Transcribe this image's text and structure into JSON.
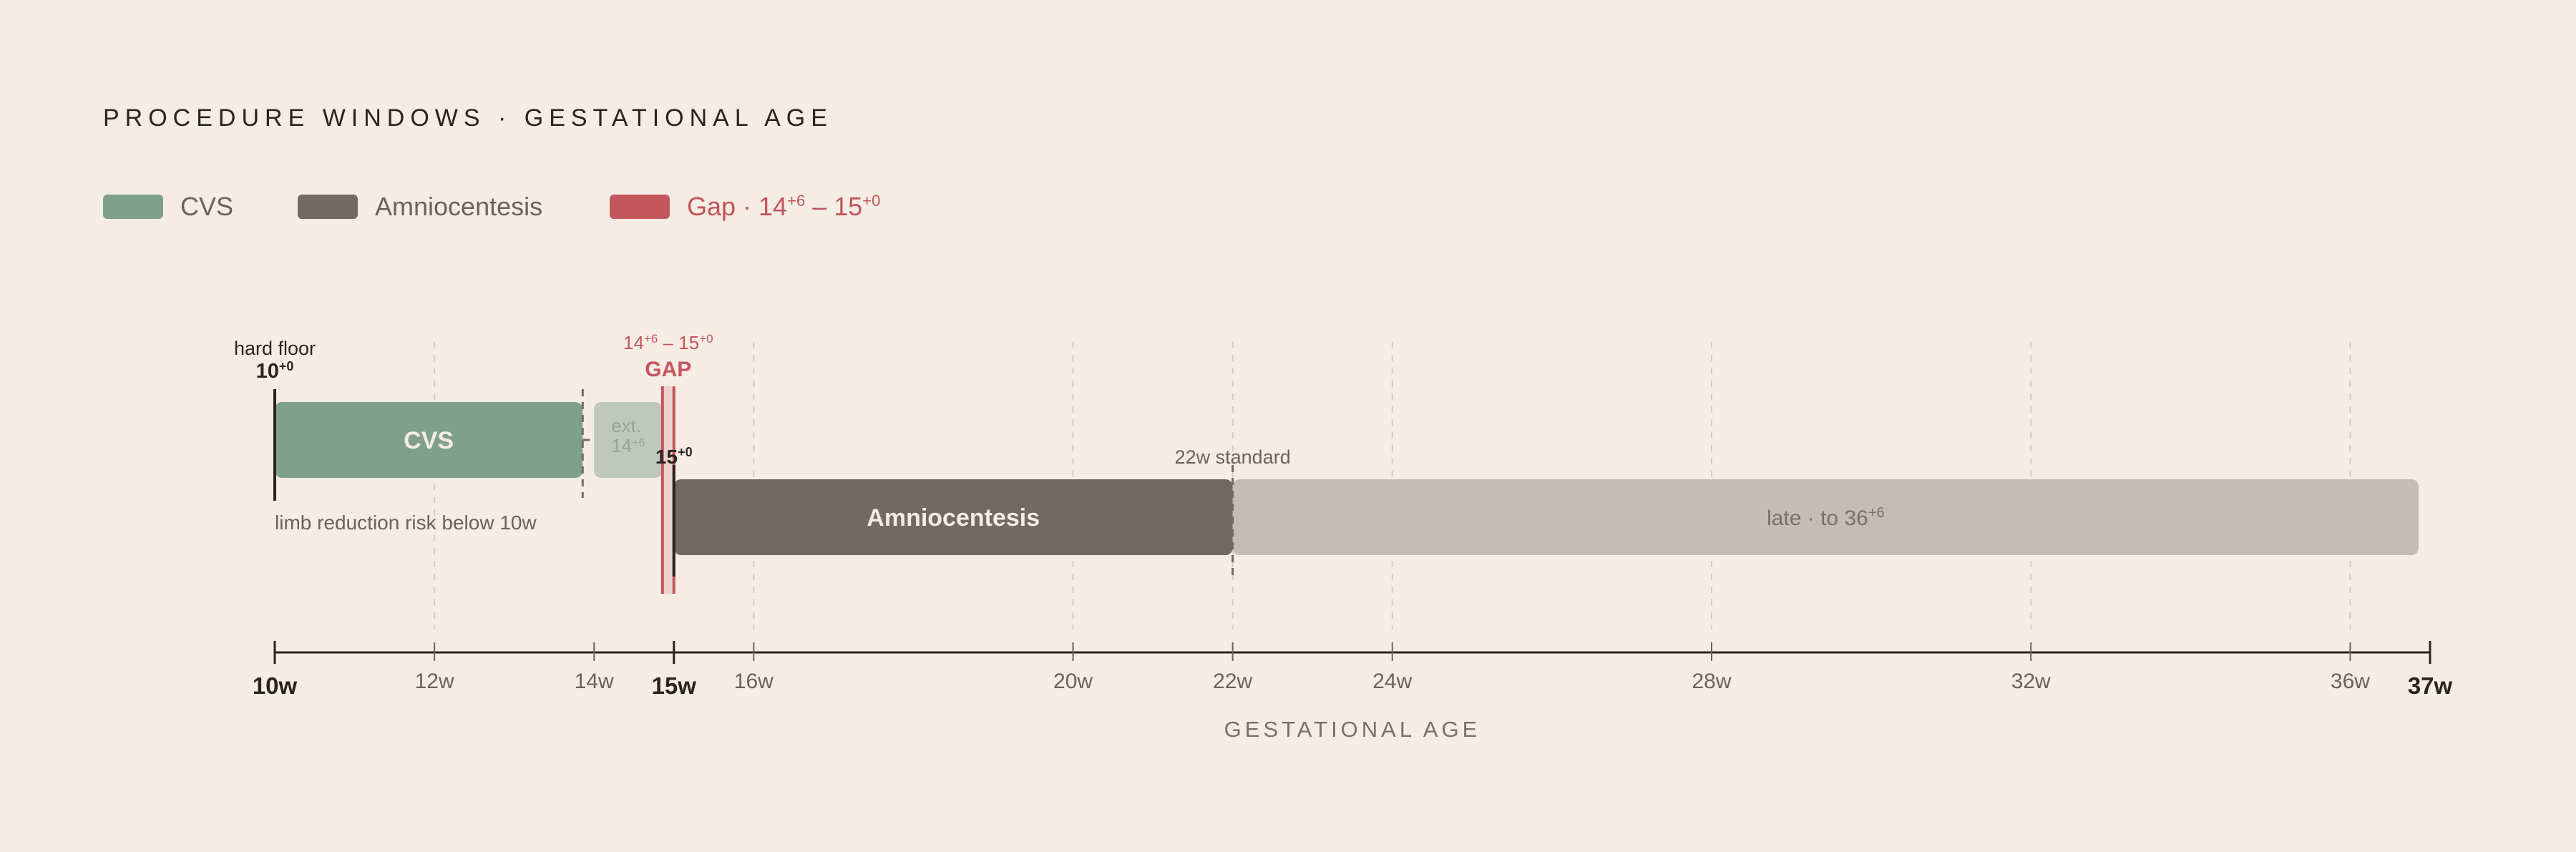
{
  "chart_data": {
    "type": "bar",
    "title": "PROCEDURE WINDOWS · GESTATIONAL AGE",
    "xlabel": "GESTATIONAL AGE",
    "xlim": [
      10,
      37
    ],
    "x_unit": "weeks",
    "grid": "dashed vertical",
    "legend_position": "top-left",
    "legend": [
      {
        "label": "CVS",
        "color": "#7ea08c"
      },
      {
        "label": "Amniocentesis",
        "color": "#736862"
      },
      {
        "label": "Gap · ",
        "label_parts": [
          "Gap · 14",
          "+6",
          " – 15",
          "+0"
        ],
        "color": "#c4565d"
      }
    ],
    "ticks": [
      {
        "value": 10,
        "label": "10w",
        "major": true
      },
      {
        "value": 12,
        "label": "12w",
        "major": false
      },
      {
        "value": 14,
        "label": "14w",
        "major": false
      },
      {
        "value": 15,
        "label": "15w",
        "major": true
      },
      {
        "value": 16,
        "label": "16w",
        "major": false
      },
      {
        "value": 20,
        "label": "20w",
        "major": false
      },
      {
        "value": 22,
        "label": "22w",
        "major": false
      },
      {
        "value": 24,
        "label": "24w",
        "major": false
      },
      {
        "value": 28,
        "label": "28w",
        "major": false
      },
      {
        "value": 32,
        "label": "32w",
        "major": false
      },
      {
        "value": 36,
        "label": "36w",
        "major": false
      },
      {
        "value": 37,
        "label": "37w",
        "major": true
      }
    ],
    "bars": [
      {
        "name": "CVS",
        "label": "CVS",
        "start": 10,
        "end": 13.857,
        "lane": 0,
        "color": "#7ea08c",
        "text_color": "#f5ece3"
      },
      {
        "name": "CVS extended",
        "label_parts": [
          "ext.",
          "14",
          "+6"
        ],
        "start": 14.0,
        "end": 14.857,
        "lane": 0,
        "color": "#bec8bc",
        "text_color": "#93a69a"
      },
      {
        "name": "Amniocentesis",
        "label": "Amniocentesis",
        "start": 15,
        "end": 22,
        "lane": 1,
        "color": "#736862",
        "text_color": "#f5ece3"
      },
      {
        "name": "Amniocentesis late",
        "label_parts": [
          "late · to 36",
          "+6"
        ],
        "start": 22,
        "end": 36.857,
        "lane": 1,
        "color": "#c6bcb5",
        "text_color": "#7a706a"
      }
    ],
    "gap": {
      "start": 14.857,
      "end": 15.0,
      "label": "GAP",
      "range_parts": [
        "14",
        "+6",
        " – 15",
        "+0"
      ],
      "color": "#c4565d"
    },
    "annotations": [
      {
        "name": "hard-floor",
        "x": 10,
        "lines": [
          "hard floor"
        ],
        "value_parts": [
          "10",
          "+0"
        ]
      },
      {
        "name": "amnio-start",
        "x": 15,
        "value_parts": [
          "15",
          "+0"
        ]
      },
      {
        "name": "standard-22w",
        "x": 22,
        "text": "22w standard"
      },
      {
        "name": "limb-note",
        "x": 10,
        "text": "limb reduction risk below 10w"
      }
    ]
  }
}
